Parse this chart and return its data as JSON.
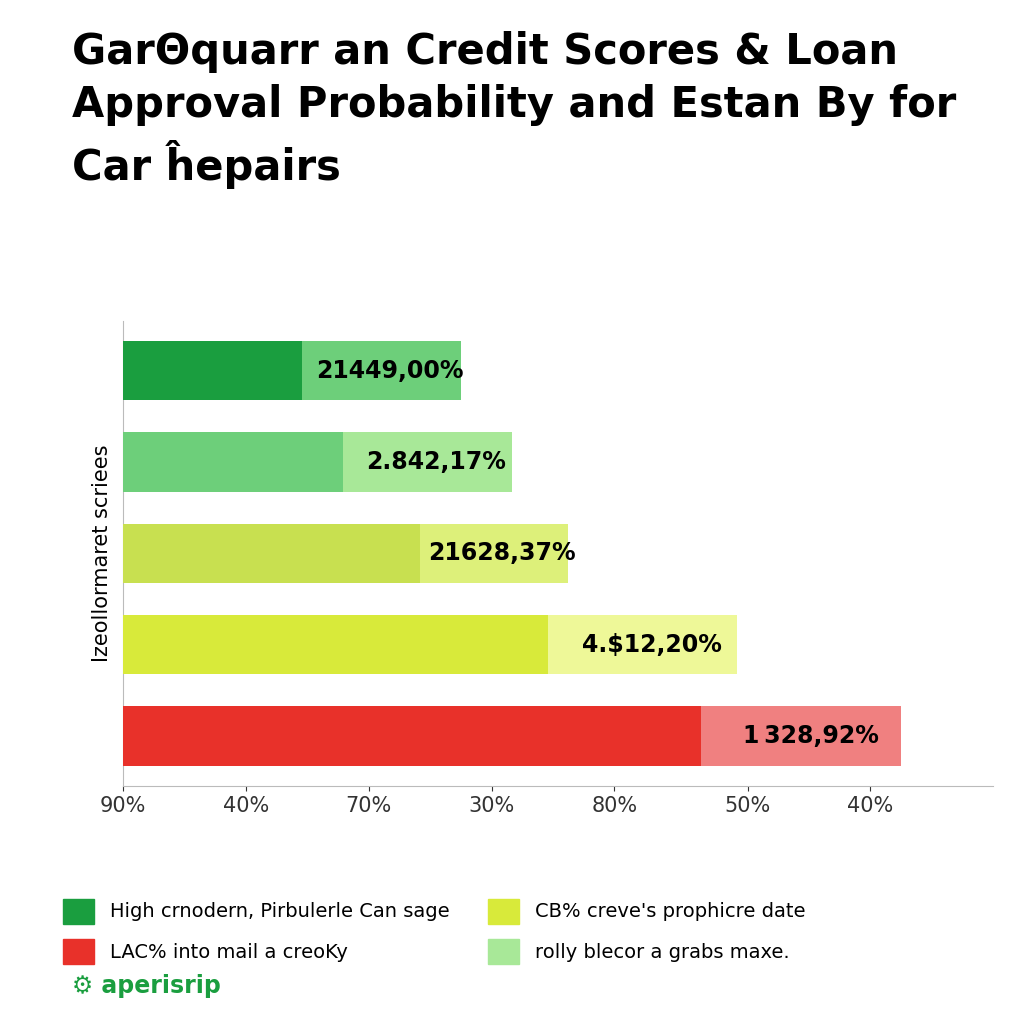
{
  "title": "GarΘquarr an Credit Scores & Loan\nApproval Probability and Estan By for\nCar ĥepairs",
  "ylabel": "Izeollormaret scriees",
  "bars": [
    {
      "label": "21449,00%",
      "value1": 0.175,
      "value2": 0.155,
      "color1": "#1a9e3f",
      "color2": "#6dcf7a"
    },
    {
      "label": "2.842,17%",
      "value1": 0.215,
      "value2": 0.165,
      "color1": "#6dcf7a",
      "color2": "#a8e898"
    },
    {
      "label": "21628,37%",
      "value1": 0.29,
      "value2": 0.145,
      "color1": "#c8e050",
      "color2": "#ddf07a"
    },
    {
      "label": "4.$12,20%",
      "value1": 0.415,
      "value2": 0.185,
      "color1": "#d8ea3a",
      "color2": "#eef898"
    },
    {
      "label": "1 328,92%",
      "value1": 0.565,
      "value2": 0.195,
      "color1": "#e8312a",
      "color2": "#f08080"
    }
  ],
  "xticks": [
    "90%",
    "40%",
    "70%",
    "30%",
    "80%",
    "50%",
    "40%"
  ],
  "xtick_vals": [
    0.0,
    0.12,
    0.24,
    0.36,
    0.48,
    0.61,
    0.73
  ],
  "xlim": [
    0,
    0.85
  ],
  "legend": [
    {
      "label": "High crnodern, Pirbulerle Can sage",
      "color": "#1a9e3f"
    },
    {
      "label": "LAC% into mail a creoKy",
      "color": "#e8312a"
    },
    {
      "label": "CB% creve's prophicre date",
      "color": "#d8ea3a"
    },
    {
      "label": "rolly blecor a grabs maxe.",
      "color": "#a8e898"
    }
  ],
  "background_color": "#ffffff",
  "title_fontsize": 30,
  "label_fontsize": 17,
  "axis_fontsize": 15,
  "bar_height": 0.65,
  "figsize": [
    10.24,
    10.24
  ],
  "dpi": 100
}
